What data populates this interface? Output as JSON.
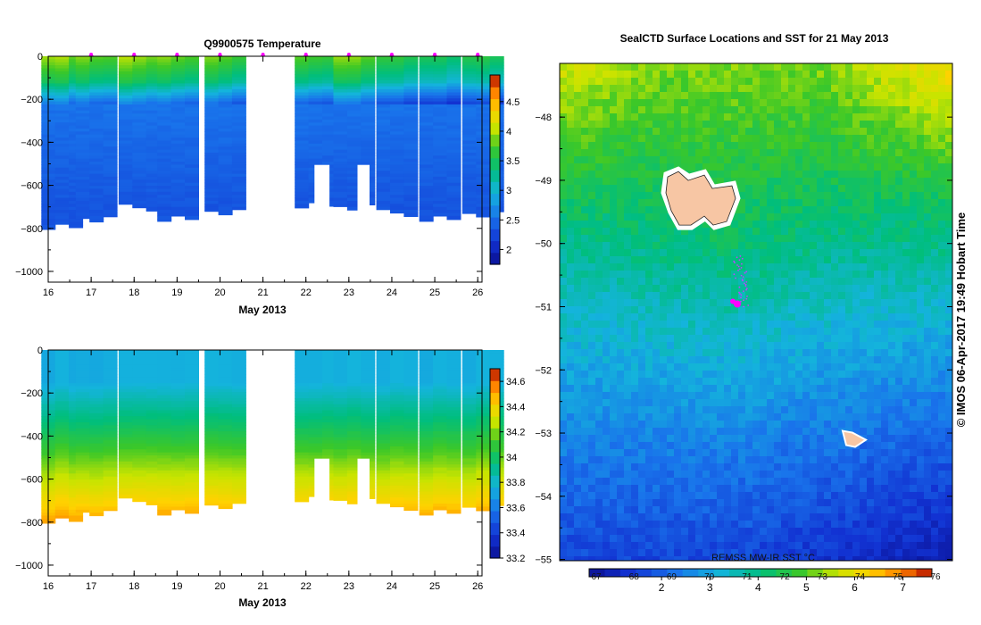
{
  "chart_data": [
    {
      "type": "heatmap",
      "title": "Q9900575  Temperature",
      "xlabel": "May 2013",
      "ylabel": "",
      "xlim": [
        16,
        26.1
      ],
      "ylim": [
        -1050,
        0
      ],
      "x_ticks": [
        16,
        17,
        18,
        19,
        20,
        21,
        22,
        23,
        24,
        25,
        26
      ],
      "y_ticks": [
        0,
        -200,
        -400,
        -600,
        -800,
        -1000
      ],
      "colorbar": {
        "min": 1.75,
        "max": 4.95,
        "ticks": [
          2,
          2.5,
          3,
          3.5,
          4,
          4.5
        ]
      },
      "profiles": [
        {
          "x": 16.1,
          "depth": -790,
          "surface": 4.05
        },
        {
          "x": 16.9,
          "depth": -755,
          "surface": 3.95
        },
        {
          "x": 17.9,
          "depth": -705,
          "surface": 4.0
        },
        {
          "x": 18.8,
          "depth": -760,
          "surface": 3.9
        },
        {
          "x": 19.9,
          "depth": -730,
          "surface": 3.85
        },
        {
          "x": 22.0,
          "depth": -690,
          "surface": 3.8
        },
        {
          "x": 22.9,
          "depth": -700,
          "surface": 3.95
        },
        {
          "x": 23.9,
          "depth": -730,
          "surface": 3.7
        },
        {
          "x": 24.9,
          "depth": -760,
          "surface": 3.6
        },
        {
          "x": 25.9,
          "depth": -740,
          "surface": 3.65
        }
      ]
    },
    {
      "type": "heatmap",
      "title": "",
      "xlabel": "May 2013",
      "ylabel": "",
      "xlim": [
        16,
        26.1
      ],
      "ylim": [
        -1050,
        0
      ],
      "x_ticks": [
        16,
        17,
        18,
        19,
        20,
        21,
        22,
        23,
        24,
        25,
        26
      ],
      "y_ticks": [
        0,
        -200,
        -400,
        -600,
        -800,
        -1000
      ],
      "colorbar": {
        "min": 33.2,
        "max": 34.7,
        "ticks": [
          33.2,
          33.4,
          33.6,
          33.8,
          34,
          34.2,
          34.4,
          34.6
        ]
      },
      "profiles": [
        {
          "x": 16.1,
          "depth": -790,
          "surface": 33.75
        },
        {
          "x": 16.9,
          "depth": -755,
          "surface": 33.75
        },
        {
          "x": 17.9,
          "depth": -705,
          "surface": 33.75
        },
        {
          "x": 18.8,
          "depth": -760,
          "surface": 33.75
        },
        {
          "x": 19.9,
          "depth": -730,
          "surface": 33.75
        },
        {
          "x": 22.0,
          "depth": -690,
          "surface": 33.75
        },
        {
          "x": 22.9,
          "depth": -700,
          "surface": 33.75
        },
        {
          "x": 23.9,
          "depth": -730,
          "surface": 33.75
        },
        {
          "x": 24.9,
          "depth": -760,
          "surface": 33.75
        },
        {
          "x": 25.9,
          "depth": -740,
          "surface": 33.75
        }
      ]
    },
    {
      "type": "heatmap",
      "title": "SealCTD Surface Locations and SST for 21 May 2013",
      "xlabel": "",
      "ylabel": "",
      "ylim": [
        -55.02,
        -47.15
      ],
      "y_ticks": [
        -48,
        -49,
        -50,
        -51,
        -52,
        -53,
        -54,
        -55
      ],
      "colorbar_label": "REMSS MW-IR SST °C",
      "colorbar": {
        "min": 0.5,
        "max": 7.6,
        "ticks": [
          2,
          3,
          4,
          5,
          6,
          7
        ],
        "f_ticks": [
          "67",
          "68",
          "69",
          "70",
          "71",
          "72",
          "73",
          "74",
          "75",
          "76"
        ]
      },
      "credit": "© IMOS 06-Apr-2017 19:49 Hobart Time",
      "islands": [
        {
          "name": "heard-island",
          "lat": -49.2
        },
        {
          "name": "mcdonald-island",
          "lat": -53.05
        }
      ],
      "seal_track_lat": [
        -50.2,
        -51.0
      ]
    }
  ],
  "colors": {
    "seal_marker": "#ff00ff",
    "island_fill": "#f7c6a4",
    "axis": "#000000"
  }
}
